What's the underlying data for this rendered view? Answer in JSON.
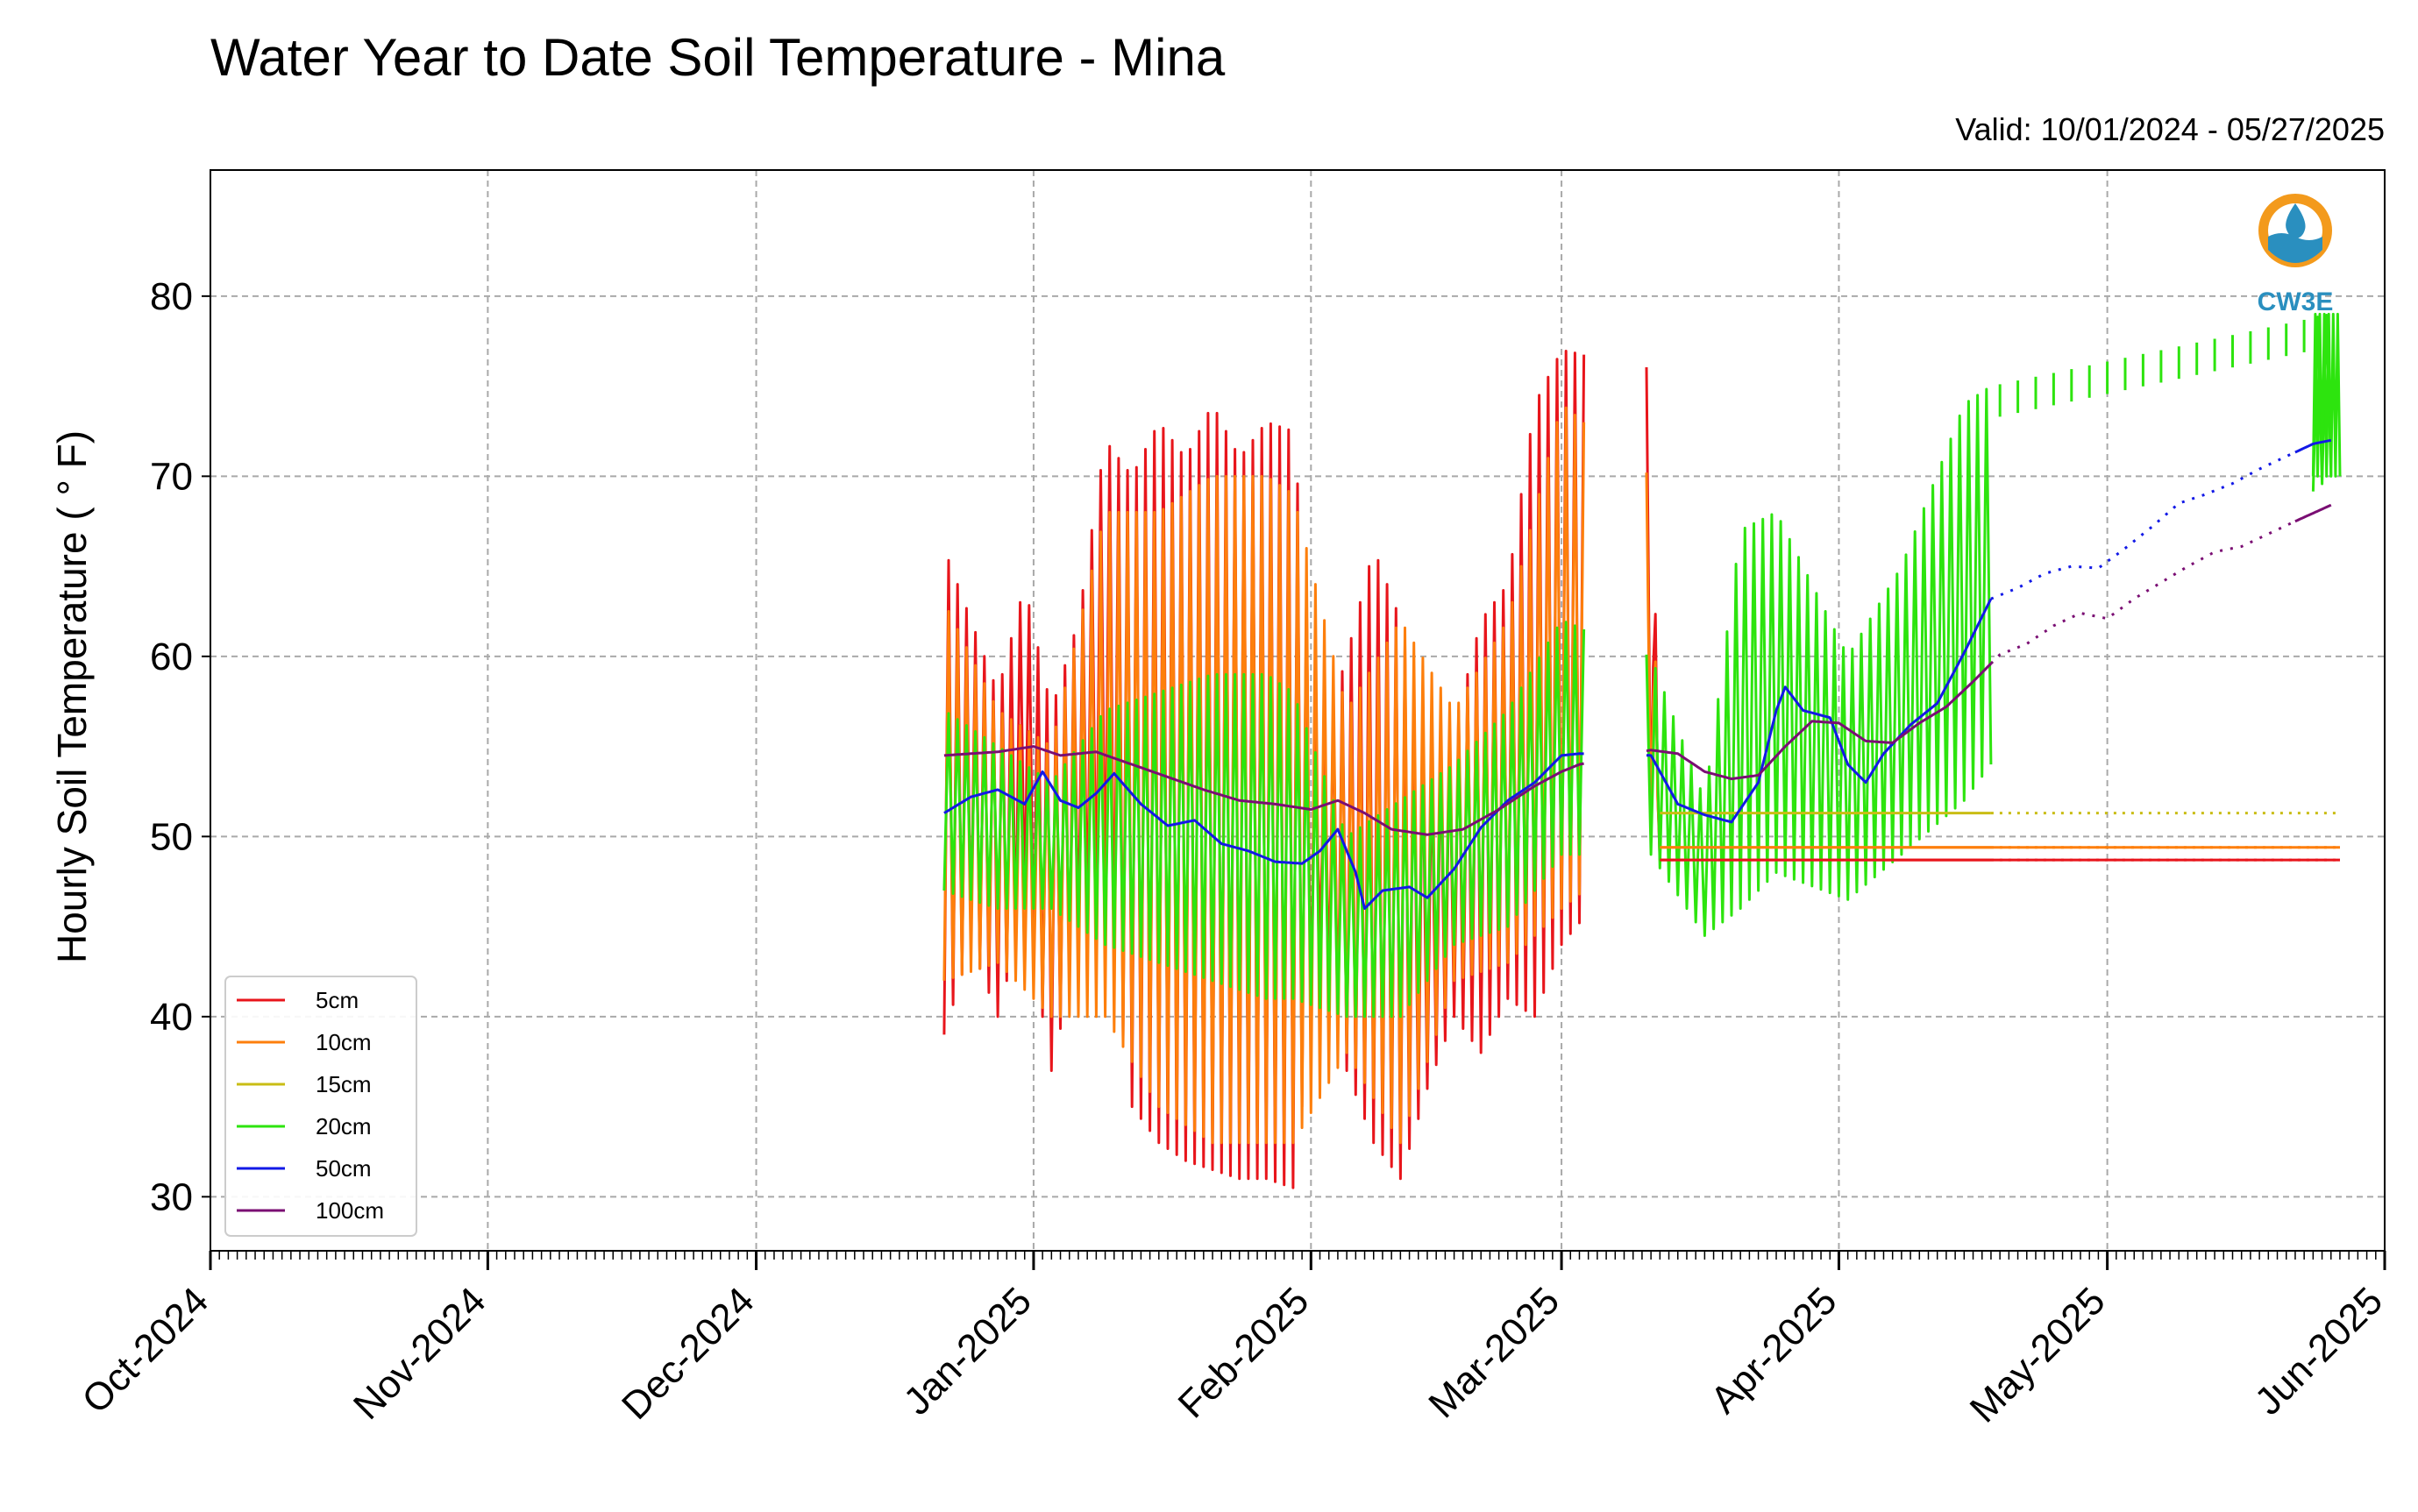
{
  "chart_data": {
    "type": "line",
    "title": "Water Year to Date Soil Temperature - Mina",
    "subtitle": "Valid: 10/01/2024 - 05/27/2025",
    "xlabel": "",
    "ylabel": "Hourly Soil Temperature ( ° F)",
    "x_range": [
      "2024-10-01",
      "2025-06-01"
    ],
    "ylim": [
      27,
      87
    ],
    "yticks": [
      30,
      40,
      50,
      60,
      70,
      80
    ],
    "x_tick_labels": [
      "Oct-2024",
      "Nov-2024",
      "Dec-2024",
      "Jan-2025",
      "Feb-2025",
      "Mar-2025",
      "Apr-2025",
      "May-2025",
      "Jun-2025"
    ],
    "x_tick_dates": [
      "2024-10-01",
      "2024-11-01",
      "2024-12-01",
      "2025-01-01",
      "2025-02-01",
      "2025-03-01",
      "2025-04-01",
      "2025-05-01",
      "2025-06-01"
    ],
    "grid": true,
    "legend_position": "lower-left",
    "logo_text": "CW3E",
    "series": [
      {
        "name": "5cm",
        "color": "#e8151b",
        "daily_min": [
          [
            "2024-12-22",
            39
          ],
          [
            "2024-12-25",
            44
          ],
          [
            "2024-12-28",
            40
          ],
          [
            "2024-12-31",
            46
          ],
          [
            "2025-01-03",
            37
          ],
          [
            "2025-01-06",
            44
          ],
          [
            "2025-01-09",
            46
          ],
          [
            "2025-01-12",
            35
          ],
          [
            "2025-01-15",
            33
          ],
          [
            "2025-01-18",
            32
          ],
          [
            "2025-01-21",
            31.5
          ],
          [
            "2025-01-24",
            31
          ],
          [
            "2025-01-27",
            31
          ],
          [
            "2025-01-30",
            30.5
          ],
          [
            "2025-02-02",
            44
          ],
          [
            "2025-02-05",
            37
          ],
          [
            "2025-02-08",
            33
          ],
          [
            "2025-02-11",
            31
          ],
          [
            "2025-02-14",
            36
          ],
          [
            "2025-02-17",
            40
          ],
          [
            "2025-02-20",
            38
          ],
          [
            "2025-02-23",
            41
          ],
          [
            "2025-02-26",
            40
          ],
          [
            "2025-03-01",
            44
          ],
          [
            "2025-03-11",
            50
          ],
          [
            "2025-03-12",
            48.7
          ],
          [
            "2025-05-27",
            48.7
          ]
        ],
        "daily_max": [
          [
            "2024-12-22",
            66
          ],
          [
            "2024-12-25",
            62
          ],
          [
            "2024-12-28",
            58
          ],
          [
            "2024-12-31",
            64
          ],
          [
            "2025-01-03",
            57
          ],
          [
            "2025-01-06",
            62
          ],
          [
            "2025-01-09",
            72
          ],
          [
            "2025-01-12",
            70
          ],
          [
            "2025-01-15",
            73
          ],
          [
            "2025-01-18",
            71
          ],
          [
            "2025-01-21",
            74
          ],
          [
            "2025-01-24",
            71
          ],
          [
            "2025-01-27",
            73
          ],
          [
            "2025-01-30",
            72.5
          ],
          [
            "2025-02-02",
            55
          ],
          [
            "2025-02-05",
            60
          ],
          [
            "2025-02-08",
            66
          ],
          [
            "2025-02-11",
            62
          ],
          [
            "2025-02-14",
            54
          ],
          [
            "2025-02-17",
            56
          ],
          [
            "2025-02-20",
            62
          ],
          [
            "2025-02-23",
            64
          ],
          [
            "2025-02-26",
            74
          ],
          [
            "2025-03-01",
            77
          ],
          [
            "2025-03-11",
            76
          ],
          [
            "2025-03-12",
            48.7
          ],
          [
            "2025-05-27",
            48.7
          ]
        ]
      },
      {
        "name": "10cm",
        "color": "#fd7f0c",
        "daily_min": [
          [
            "2024-12-22",
            42
          ],
          [
            "2024-12-28",
            43
          ],
          [
            "2025-01-03",
            40
          ],
          [
            "2025-01-09",
            40
          ],
          [
            "2025-01-15",
            35
          ],
          [
            "2025-01-21",
            33
          ],
          [
            "2025-01-27",
            33
          ],
          [
            "2025-01-30",
            33
          ],
          [
            "2025-02-05",
            38
          ],
          [
            "2025-02-11",
            33
          ],
          [
            "2025-02-17",
            42
          ],
          [
            "2025-02-23",
            43
          ],
          [
            "2025-03-01",
            46
          ],
          [
            "2025-03-11",
            50
          ],
          [
            "2025-03-12",
            49.4
          ],
          [
            "2025-05-27",
            49.4
          ]
        ],
        "daily_max": [
          [
            "2024-12-22",
            63
          ],
          [
            "2024-12-28",
            57
          ],
          [
            "2025-01-03",
            55
          ],
          [
            "2025-01-09",
            68
          ],
          [
            "2025-01-15",
            68
          ],
          [
            "2025-01-21",
            70
          ],
          [
            "2025-01-27",
            70
          ],
          [
            "2025-01-30",
            69
          ],
          [
            "2025-02-05",
            57
          ],
          [
            "2025-02-11",
            62
          ],
          [
            "2025-02-17",
            57
          ],
          [
            "2025-02-23",
            62
          ],
          [
            "2025-03-01",
            74
          ],
          [
            "2025-03-11",
            70
          ],
          [
            "2025-03-12",
            49.4
          ],
          [
            "2025-05-27",
            49.4
          ]
        ]
      },
      {
        "name": "15cm",
        "color": "#c9bd14",
        "daily_values": [
          [
            "2025-03-12",
            51.3
          ],
          [
            "2025-05-27",
            51.3
          ]
        ]
      },
      {
        "name": "20cm",
        "color": "#2de40e",
        "daily_min": [
          [
            "2024-12-22",
            47
          ],
          [
            "2024-12-28",
            46
          ],
          [
            "2025-01-03",
            46
          ],
          [
            "2025-01-09",
            44
          ],
          [
            "2025-01-15",
            43
          ],
          [
            "2025-01-21",
            42
          ],
          [
            "2025-01-27",
            41
          ],
          [
            "2025-01-30",
            41
          ],
          [
            "2025-02-05",
            40
          ],
          [
            "2025-02-11",
            40
          ],
          [
            "2025-02-17",
            44
          ],
          [
            "2025-02-23",
            45
          ],
          [
            "2025-03-01",
            49
          ],
          [
            "2025-03-11",
            49
          ],
          [
            "2025-03-17",
            44.5
          ],
          [
            "2025-03-21",
            46
          ],
          [
            "2025-03-25",
            48
          ],
          [
            "2025-04-02",
            46.5
          ],
          [
            "2025-04-08",
            49
          ],
          [
            "2025-04-15",
            52
          ],
          [
            "2025-04-18",
            54
          ],
          [
            "2025-05-26",
            70
          ]
        ],
        "daily_max": [
          [
            "2024-12-22",
            57
          ],
          [
            "2024-12-28",
            55
          ],
          [
            "2025-01-03",
            53
          ],
          [
            "2025-01-09",
            57
          ],
          [
            "2025-01-15",
            58
          ],
          [
            "2025-01-21",
            59
          ],
          [
            "2025-01-27",
            59
          ],
          [
            "2025-01-30",
            58
          ],
          [
            "2025-02-05",
            50
          ],
          [
            "2025-02-11",
            52
          ],
          [
            "2025-02-17",
            54
          ],
          [
            "2025-02-23",
            57
          ],
          [
            "2025-03-01",
            62
          ],
          [
            "2025-03-11",
            60
          ],
          [
            "2025-03-17",
            52
          ],
          [
            "2025-03-21",
            67
          ],
          [
            "2025-03-25",
            68
          ],
          [
            "2025-04-02",
            60
          ],
          [
            "2025-04-08",
            65
          ],
          [
            "2025-04-15",
            74
          ],
          [
            "2025-04-18",
            75
          ],
          [
            "2025-05-26",
            79
          ]
        ]
      },
      {
        "name": "50cm",
        "color": "#1219e6",
        "daily_values": [
          [
            "2024-12-22",
            51.3
          ],
          [
            "2024-12-25",
            52.2
          ],
          [
            "2024-12-28",
            52.6
          ],
          [
            "2024-12-31",
            51.8
          ],
          [
            "2025-01-02",
            53.6
          ],
          [
            "2025-01-04",
            52
          ],
          [
            "2025-01-06",
            51.6
          ],
          [
            "2025-01-08",
            52.4
          ],
          [
            "2025-01-10",
            53.5
          ],
          [
            "2025-01-13",
            51.8
          ],
          [
            "2025-01-16",
            50.6
          ],
          [
            "2025-01-19",
            50.9
          ],
          [
            "2025-01-22",
            49.6
          ],
          [
            "2025-01-25",
            49.2
          ],
          [
            "2025-01-28",
            48.6
          ],
          [
            "2025-01-31",
            48.5
          ],
          [
            "2025-02-02",
            49.2
          ],
          [
            "2025-02-04",
            50.4
          ],
          [
            "2025-02-06",
            48
          ],
          [
            "2025-02-07",
            46
          ],
          [
            "2025-02-09",
            47
          ],
          [
            "2025-02-12",
            47.2
          ],
          [
            "2025-02-14",
            46.6
          ],
          [
            "2025-02-17",
            48.2
          ],
          [
            "2025-02-20",
            50.5
          ],
          [
            "2025-02-23",
            52
          ],
          [
            "2025-02-26",
            53
          ],
          [
            "2025-03-01",
            54.5
          ],
          [
            "2025-03-03",
            54.6
          ],
          [
            "2025-03-11",
            54.5
          ],
          [
            "2025-03-14",
            51.8
          ],
          [
            "2025-03-17",
            51.2
          ],
          [
            "2025-03-20",
            50.8
          ],
          [
            "2025-03-23",
            53
          ],
          [
            "2025-03-25",
            57
          ],
          [
            "2025-03-26",
            58.3
          ],
          [
            "2025-03-28",
            57
          ],
          [
            "2025-03-31",
            56.6
          ],
          [
            "2025-04-02",
            54
          ],
          [
            "2025-04-04",
            53
          ],
          [
            "2025-04-06",
            54.6
          ],
          [
            "2025-04-09",
            56.2
          ],
          [
            "2025-04-12",
            57.4
          ],
          [
            "2025-04-15",
            60.2
          ],
          [
            "2025-04-18",
            63.2
          ],
          [
            "2025-04-21",
            63.8
          ],
          [
            "2025-04-24",
            64.6
          ],
          [
            "2025-04-27",
            65
          ],
          [
            "2025-04-30",
            64.9
          ],
          [
            "2025-05-03",
            66
          ],
          [
            "2025-05-06",
            67.2
          ],
          [
            "2025-05-09",
            68.5
          ],
          [
            "2025-05-12",
            69
          ],
          [
            "2025-05-15",
            69.6
          ],
          [
            "2025-05-18",
            70.4
          ],
          [
            "2025-05-21",
            71.1
          ],
          [
            "2025-05-24",
            71.8
          ],
          [
            "2025-05-26",
            72
          ]
        ]
      },
      {
        "name": "100cm",
        "color": "#7a0e73",
        "daily_values": [
          [
            "2024-12-22",
            54.5
          ],
          [
            "2024-12-28",
            54.7
          ],
          [
            "2025-01-01",
            55
          ],
          [
            "2025-01-04",
            54.5
          ],
          [
            "2025-01-08",
            54.7
          ],
          [
            "2025-01-12",
            54
          ],
          [
            "2025-01-16",
            53.3
          ],
          [
            "2025-01-20",
            52.6
          ],
          [
            "2025-01-24",
            52
          ],
          [
            "2025-01-28",
            51.8
          ],
          [
            "2025-02-01",
            51.5
          ],
          [
            "2025-02-04",
            52
          ],
          [
            "2025-02-07",
            51.3
          ],
          [
            "2025-02-10",
            50.4
          ],
          [
            "2025-02-14",
            50.1
          ],
          [
            "2025-02-18",
            50.4
          ],
          [
            "2025-02-22",
            51.5
          ],
          [
            "2025-02-26",
            52.8
          ],
          [
            "2025-03-01",
            53.6
          ],
          [
            "2025-03-03",
            54
          ],
          [
            "2025-03-11",
            54.8
          ],
          [
            "2025-03-14",
            54.6
          ],
          [
            "2025-03-17",
            53.6
          ],
          [
            "2025-03-20",
            53.2
          ],
          [
            "2025-03-23",
            53.4
          ],
          [
            "2025-03-26",
            55
          ],
          [
            "2025-03-29",
            56.4
          ],
          [
            "2025-04-01",
            56.3
          ],
          [
            "2025-04-04",
            55.3
          ],
          [
            "2025-04-07",
            55.2
          ],
          [
            "2025-04-10",
            56.3
          ],
          [
            "2025-04-13",
            57.2
          ],
          [
            "2025-04-16",
            58.6
          ],
          [
            "2025-04-19",
            60.1
          ],
          [
            "2025-04-22",
            60.7
          ],
          [
            "2025-04-25",
            61.7
          ],
          [
            "2025-04-28",
            62.4
          ],
          [
            "2025-05-01",
            62.1
          ],
          [
            "2025-05-04",
            63.2
          ],
          [
            "2025-05-07",
            64.1
          ],
          [
            "2025-05-10",
            65
          ],
          [
            "2025-05-13",
            65.8
          ],
          [
            "2025-05-16",
            66.1
          ],
          [
            "2025-05-19",
            66.8
          ],
          [
            "2025-05-22",
            67.5
          ],
          [
            "2025-05-26",
            68.4
          ]
        ]
      }
    ]
  }
}
